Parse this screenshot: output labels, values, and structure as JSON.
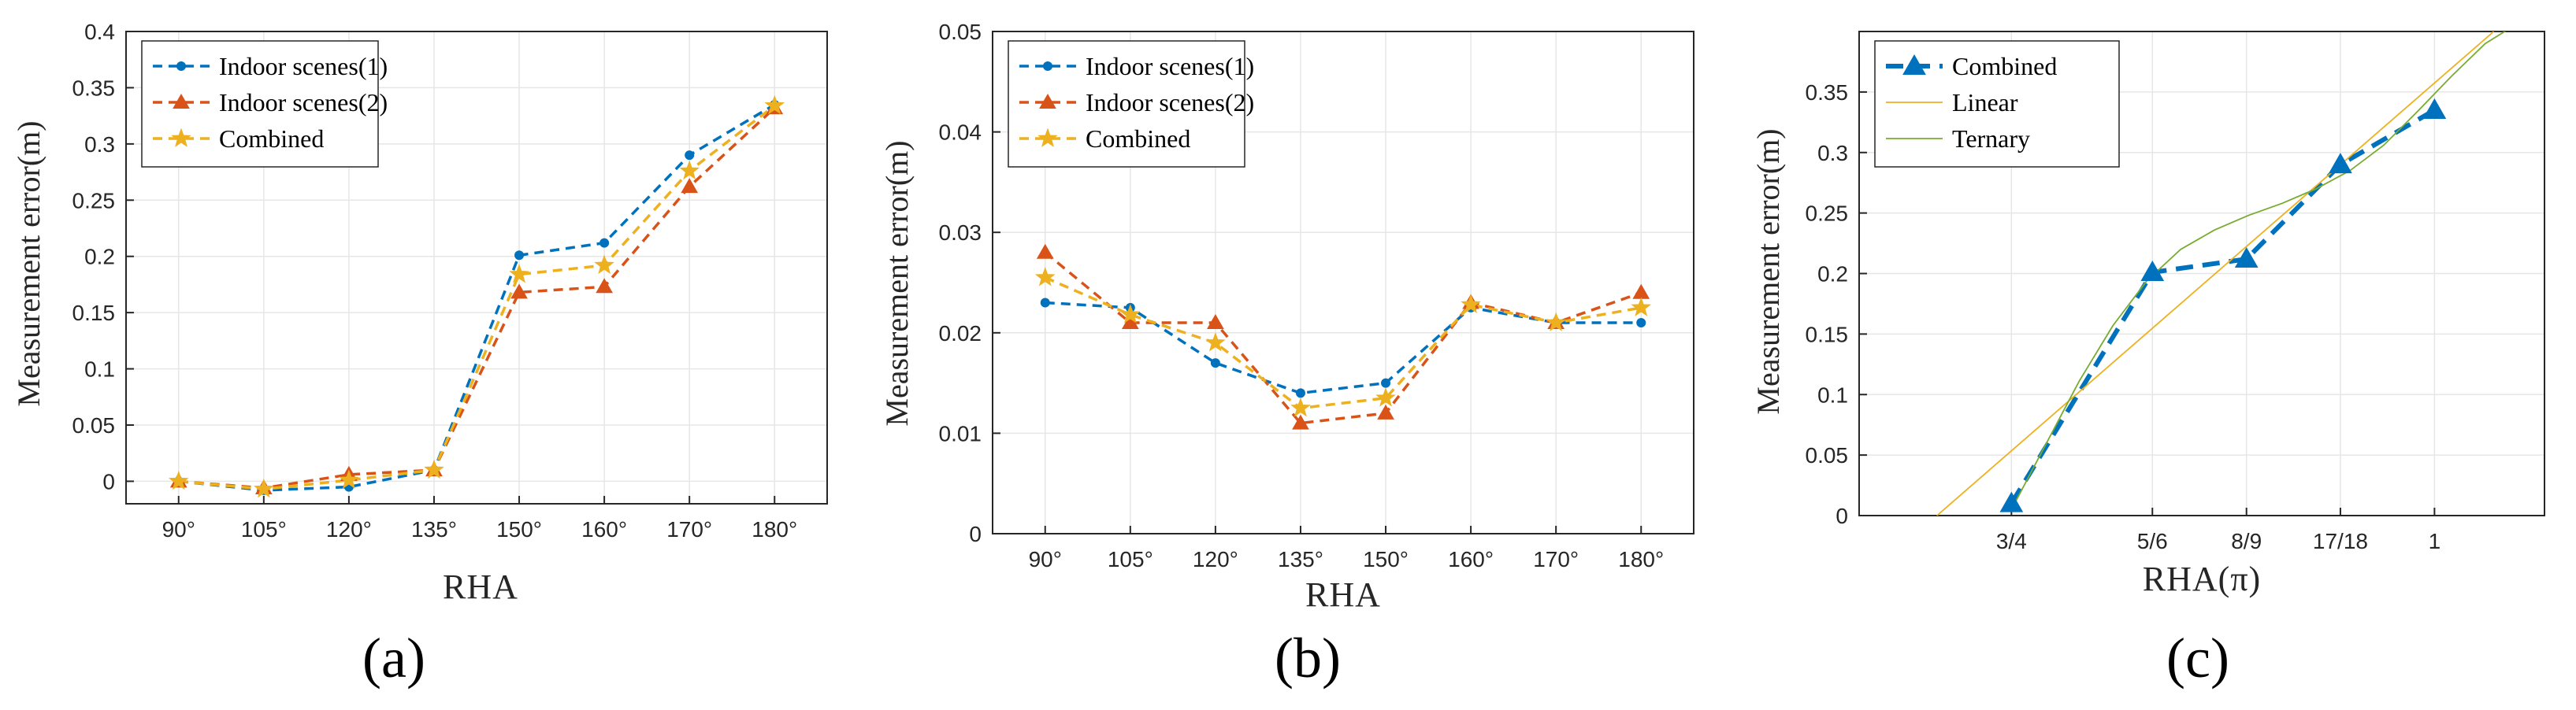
{
  "colors": {
    "indoor1": "#0072BD",
    "indoor2": "#D95319",
    "combined": "#EDB120",
    "combined_c": "#0072BD",
    "linear": "#EDB120",
    "ternary": "#77AC30"
  },
  "chart_data": [
    {
      "panel": "a",
      "panel_label": "(a)",
      "type": "line",
      "xlabel": "RHA",
      "ylabel": "Measurement error(m)",
      "categories": [
        "90°",
        "105°",
        "120°",
        "135°",
        "150°",
        "160°",
        "170°",
        "180°"
      ],
      "ylim": [
        -0.02,
        0.4
      ],
      "yticks": [
        0,
        0.05,
        0.1,
        0.15,
        0.2,
        0.25,
        0.3,
        0.35,
        0.4
      ],
      "ytick_labels": [
        "0",
        "0.05",
        "0.1",
        "0.15",
        "0.2",
        "0.25",
        "0.3",
        "0.35",
        "0.4"
      ],
      "grid": true,
      "legend_position": "top-left",
      "series": [
        {
          "name": "Indoor scenes(1)",
          "marker": "circle",
          "color_key": "indoor1",
          "values": [
            0,
            -0.008,
            -0.005,
            0.01,
            0.201,
            0.212,
            0.29,
            0.335
          ]
        },
        {
          "name": "Indoor scenes(2)",
          "marker": "triangle",
          "color_key": "indoor2",
          "values": [
            0,
            -0.006,
            0.006,
            0.01,
            0.168,
            0.173,
            0.262,
            0.332
          ]
        },
        {
          "name": "Combined",
          "marker": "star",
          "color_key": "combined",
          "values": [
            0,
            -0.007,
            0.001,
            0.01,
            0.184,
            0.192,
            0.276,
            0.334
          ]
        }
      ]
    },
    {
      "panel": "b",
      "panel_label": "(b)",
      "type": "line",
      "xlabel": "RHA",
      "ylabel": "Measurement error(m)",
      "categories": [
        "90°",
        "105°",
        "120°",
        "135°",
        "150°",
        "160°",
        "170°",
        "180°"
      ],
      "ylim": [
        0,
        0.05
      ],
      "yticks": [
        0,
        0.01,
        0.02,
        0.03,
        0.04,
        0.05
      ],
      "ytick_labels": [
        "0",
        "0.01",
        "0.02",
        "0.03",
        "0.04",
        "0.05"
      ],
      "grid": true,
      "legend_position": "top-left",
      "series": [
        {
          "name": "Indoor scenes(1)",
          "marker": "circle",
          "color_key": "indoor1",
          "values": [
            0.023,
            0.0225,
            0.017,
            0.014,
            0.015,
            0.0225,
            0.021,
            0.021
          ]
        },
        {
          "name": "Indoor scenes(2)",
          "marker": "triangle",
          "color_key": "indoor2",
          "values": [
            0.028,
            0.021,
            0.021,
            0.011,
            0.012,
            0.023,
            0.021,
            0.024
          ]
        },
        {
          "name": "Combined",
          "marker": "star",
          "color_key": "combined",
          "values": [
            0.0255,
            0.0218,
            0.019,
            0.0125,
            0.0135,
            0.0228,
            0.021,
            0.0225
          ]
        }
      ]
    },
    {
      "panel": "c",
      "panel_label": "(c)",
      "type": "line",
      "xlabel": "RHA(π)",
      "ylabel": "Measurement error(m)",
      "xlim": [
        0.66,
        1.065
      ],
      "xticks": [
        0.75,
        0.8333,
        0.8889,
        0.9444,
        1.0
      ],
      "xtick_labels": [
        "3/4",
        "5/6",
        "8/9",
        "17/18",
        "1"
      ],
      "ylim": [
        0,
        0.4
      ],
      "yticks": [
        0,
        0.05,
        0.1,
        0.15,
        0.2,
        0.25,
        0.3,
        0.35
      ],
      "ytick_labels": [
        "0",
        "0.05",
        "0.1",
        "0.15",
        "0.2",
        "0.25",
        "0.3",
        "0.35"
      ],
      "grid": true,
      "legend_position": "top-left",
      "series": [
        {
          "name": "Combined",
          "marker": "triangle",
          "color_key": "combined_c",
          "x": [
            0.75,
            0.8333,
            0.8889,
            0.9444,
            1.0
          ],
          "values": [
            0.01,
            0.201,
            0.212,
            0.29,
            0.335
          ]
        },
        {
          "name": "Linear",
          "marker": "none",
          "color_key": "linear",
          "x": [
            0.706,
            1.035
          ],
          "values": [
            0.0,
            0.4
          ]
        },
        {
          "name": "Ternary",
          "marker": "none",
          "color_key": "ternary",
          "x": [
            0.75,
            0.77,
            0.79,
            0.81,
            0.83,
            0.85,
            0.87,
            0.89,
            0.91,
            0.93,
            0.95,
            0.97,
            0.99,
            1.01,
            1.03,
            1.045
          ],
          "values": [
            0.005,
            0.058,
            0.111,
            0.157,
            0.194,
            0.22,
            0.236,
            0.248,
            0.258,
            0.27,
            0.285,
            0.306,
            0.334,
            0.363,
            0.39,
            0.403
          ]
        }
      ]
    }
  ]
}
